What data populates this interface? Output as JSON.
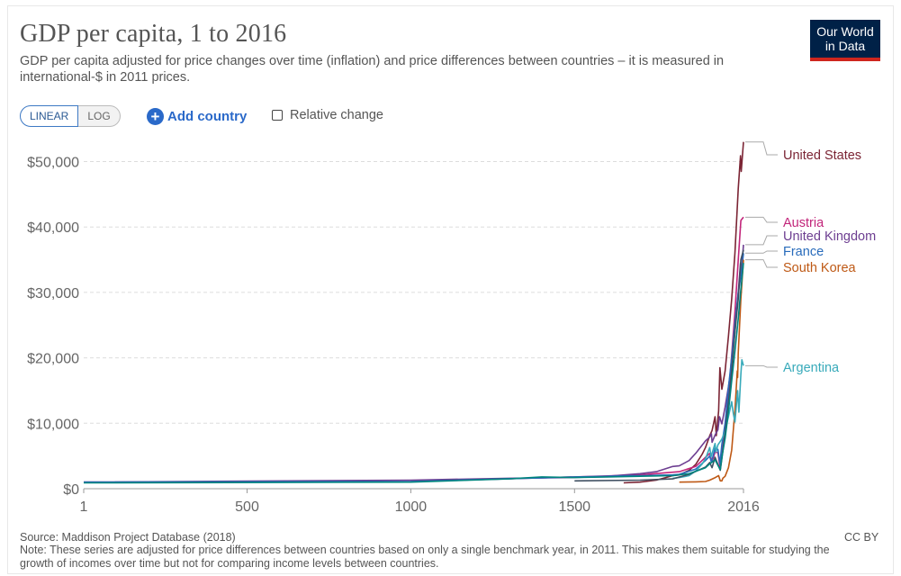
{
  "header": {
    "title": "GDP per capita, 1 to 2016",
    "subtitle": "GDP per capita adjusted for price changes over time (inflation) and price differences between countries – it is measured in international-$ in 2011 prices.",
    "logo_line1": "Our World",
    "logo_line2": "in Data"
  },
  "controls": {
    "linear_label": "LINEAR",
    "log_label": "LOG",
    "add_country_label": "Add country",
    "relative_change_label": "Relative change",
    "selected_scale": "linear"
  },
  "footer": {
    "source": "Source: Maddison Project Database (2018)",
    "note": "Note: These series are adjusted for price differences between countries based on only a single benchmark year, in 2011. This makes them suitable for studying the growth of incomes over time but not for comparing income levels between countries.",
    "license": "CC BY"
  },
  "chart_data": {
    "type": "line",
    "xlim": [
      1,
      2016
    ],
    "ylim": [
      0,
      52000
    ],
    "x_ticks": [
      1,
      500,
      1000,
      1500,
      2016
    ],
    "x_tick_labels": [
      "1",
      "500",
      "1000",
      "1500",
      "2016"
    ],
    "y_ticks": [
      0,
      10000,
      20000,
      30000,
      40000,
      50000
    ],
    "y_tick_labels": [
      "$0",
      "$10,000",
      "$20,000",
      "$30,000",
      "$40,000",
      "$50,000"
    ],
    "grid": "horizontal-dashed",
    "legend": "right-end-labels",
    "series": [
      {
        "name": "United States",
        "color": "#7b2434",
        "points": [
          [
            1650,
            900
          ],
          [
            1700,
            1000
          ],
          [
            1750,
            1300
          ],
          [
            1800,
            2000
          ],
          [
            1820,
            2100
          ],
          [
            1850,
            2800
          ],
          [
            1870,
            3700
          ],
          [
            1890,
            5300
          ],
          [
            1900,
            6300
          ],
          [
            1913,
            8100
          ],
          [
            1920,
            8900
          ],
          [
            1929,
            11000
          ],
          [
            1933,
            8100
          ],
          [
            1940,
            11900
          ],
          [
            1944,
            18500
          ],
          [
            1950,
            15200
          ],
          [
            1960,
            18000
          ],
          [
            1970,
            23300
          ],
          [
            1980,
            29000
          ],
          [
            1990,
            36000
          ],
          [
            2000,
            45900
          ],
          [
            2007,
            50900
          ],
          [
            2009,
            48500
          ],
          [
            2016,
            53000
          ]
        ]
      },
      {
        "name": "Austria",
        "color": "#c2257a",
        "points": [
          [
            1,
            1000
          ],
          [
            1000,
            1100
          ],
          [
            1500,
            1800
          ],
          [
            1700,
            2100
          ],
          [
            1820,
            2600
          ],
          [
            1870,
            3400
          ],
          [
            1913,
            5400
          ],
          [
            1920,
            4100
          ],
          [
            1929,
            5600
          ],
          [
            1938,
            5500
          ],
          [
            1945,
            3000
          ],
          [
            1950,
            5300
          ],
          [
            1960,
            9100
          ],
          [
            1970,
            14000
          ],
          [
            1980,
            20500
          ],
          [
            1990,
            27000
          ],
          [
            2000,
            35000
          ],
          [
            2008,
            41000
          ],
          [
            2016,
            41500
          ]
        ]
      },
      {
        "name": "United Kingdom",
        "color": "#6d3e91",
        "points": [
          [
            1,
            1000
          ],
          [
            1000,
            1300
          ],
          [
            1300,
            1600
          ],
          [
            1500,
            1700
          ],
          [
            1600,
            1900
          ],
          [
            1700,
            2300
          ],
          [
            1750,
            2600
          ],
          [
            1800,
            3400
          ],
          [
            1820,
            3500
          ],
          [
            1850,
            4300
          ],
          [
            1870,
            5400
          ],
          [
            1900,
            7300
          ],
          [
            1913,
            7900
          ],
          [
            1918,
            8400
          ],
          [
            1920,
            7100
          ],
          [
            1929,
            8200
          ],
          [
            1938,
            9000
          ],
          [
            1943,
            11000
          ],
          [
            1950,
            9900
          ],
          [
            1960,
            12500
          ],
          [
            1970,
            15600
          ],
          [
            1980,
            19000
          ],
          [
            1990,
            24000
          ],
          [
            2000,
            30000
          ],
          [
            2007,
            34500
          ],
          [
            2009,
            32800
          ],
          [
            2016,
            37300
          ]
        ]
      },
      {
        "name": "France",
        "color": "#286bbb",
        "points": [
          [
            1,
            1000
          ],
          [
            1000,
            1100
          ],
          [
            1500,
            1800
          ],
          [
            1600,
            1900
          ],
          [
            1700,
            2000
          ],
          [
            1800,
            2100
          ],
          [
            1820,
            2200
          ],
          [
            1870,
            3000
          ],
          [
            1900,
            4300
          ],
          [
            1913,
            5000
          ],
          [
            1918,
            4000
          ],
          [
            1929,
            6200
          ],
          [
            1938,
            6000
          ],
          [
            1944,
            3800
          ],
          [
            1950,
            6800
          ],
          [
            1960,
            10000
          ],
          [
            1970,
            15400
          ],
          [
            1980,
            20000
          ],
          [
            1990,
            25300
          ],
          [
            2000,
            30000
          ],
          [
            2008,
            32400
          ],
          [
            2016,
            36000
          ]
        ]
      },
      {
        "name": "South Korea",
        "color": "#be5915",
        "points": [
          [
            1820,
            1000
          ],
          [
            1870,
            1050
          ],
          [
            1900,
            1100
          ],
          [
            1913,
            1300
          ],
          [
            1930,
            1700
          ],
          [
            1940,
            2000
          ],
          [
            1945,
            1200
          ],
          [
            1950,
            1200
          ],
          [
            1953,
            1600
          ],
          [
            1960,
            1900
          ],
          [
            1970,
            3200
          ],
          [
            1980,
            5900
          ],
          [
            1990,
            12000
          ],
          [
            1997,
            18000
          ],
          [
            1998,
            17000
          ],
          [
            2000,
            20800
          ],
          [
            2008,
            29000
          ],
          [
            2016,
            35000
          ]
        ]
      },
      {
        "name": "Argentina",
        "color": "#38aaba",
        "points": [
          [
            1800,
            1600
          ],
          [
            1820,
            1700
          ],
          [
            1850,
            2000
          ],
          [
            1870,
            2700
          ],
          [
            1890,
            3800
          ],
          [
            1900,
            4600
          ],
          [
            1913,
            6300
          ],
          [
            1917,
            4900
          ],
          [
            1929,
            6900
          ],
          [
            1932,
            5600
          ],
          [
            1938,
            6700
          ],
          [
            1950,
            7600
          ],
          [
            1960,
            8800
          ],
          [
            1970,
            11000
          ],
          [
            1980,
            13300
          ],
          [
            1985,
            11500
          ],
          [
            1990,
            10200
          ],
          [
            1998,
            15000
          ],
          [
            2002,
            11700
          ],
          [
            2008,
            17500
          ],
          [
            2011,
            19700
          ],
          [
            2016,
            18800
          ]
        ]
      },
      {
        "color": "#3f4f61",
        "points": [
          [
            1500,
            1200
          ],
          [
            1700,
            1300
          ],
          [
            1800,
            1500
          ],
          [
            1850,
            2200
          ],
          [
            1900,
            3300
          ],
          [
            1913,
            4000
          ],
          [
            1920,
            3200
          ],
          [
            1929,
            4800
          ],
          [
            1945,
            2800
          ],
          [
            1950,
            4600
          ],
          [
            1960,
            8500
          ],
          [
            1970,
            13000
          ],
          [
            1980,
            18000
          ],
          [
            1990,
            24000
          ],
          [
            2000,
            29000
          ],
          [
            2008,
            35000
          ],
          [
            2016,
            36500
          ]
        ]
      },
      {
        "color": "#00847e",
        "points": [
          [
            1,
            900
          ],
          [
            1000,
            1000
          ],
          [
            1300,
            1500
          ],
          [
            1400,
            1800
          ],
          [
            1500,
            1700
          ],
          [
            1600,
            1800
          ],
          [
            1700,
            1900
          ],
          [
            1800,
            2000
          ],
          [
            1850,
            2300
          ],
          [
            1900,
            3200
          ],
          [
            1913,
            3800
          ],
          [
            1929,
            4400
          ],
          [
            1945,
            2900
          ],
          [
            1950,
            4800
          ],
          [
            1960,
            7700
          ],
          [
            1970,
            11800
          ],
          [
            1980,
            16500
          ],
          [
            1990,
            21000
          ],
          [
            2000,
            26000
          ],
          [
            2008,
            30500
          ],
          [
            2016,
            34500
          ]
        ]
      }
    ]
  }
}
